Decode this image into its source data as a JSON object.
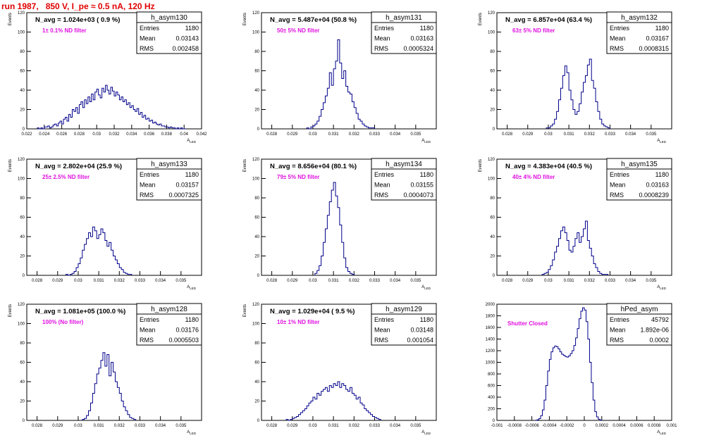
{
  "title": "run 1987,   850 V, I_pe ≈ 0.5 nA, 120 Hz",
  "chart_data": [
    {
      "type": "histogram",
      "hist_name": "h_asym130",
      "navg": "N_avg = 1.024e+03 ( 0.9 %)",
      "filter": "1± 0.1% ND filter",
      "stats": {
        "Entries": "1180",
        "Mean": "0.03143",
        "RMS": "0.002458"
      },
      "xlabel": "A_LED",
      "ylabel": "Events",
      "xlim": [
        0.022,
        0.042
      ],
      "ylim": [
        0,
        120
      ],
      "xticks": [
        "0.022",
        "0.024",
        "0.026",
        "0.028",
        "0.03",
        "0.032",
        "0.034",
        "0.036",
        "0.038",
        "0.04",
        "0.042"
      ],
      "yticks": [
        "0",
        "20",
        "40",
        "60",
        "80",
        "100",
        "120"
      ],
      "bins": {
        "x0": 0.0232,
        "width": 0.0002,
        "counts": [
          1,
          0,
          1,
          0,
          2,
          2,
          3,
          1,
          2,
          4,
          5,
          3,
          6,
          8,
          5,
          10,
          12,
          8,
          15,
          12,
          20,
          18,
          22,
          16,
          25,
          28,
          22,
          30,
          26,
          33,
          28,
          36,
          30,
          38,
          41,
          35,
          32,
          42,
          38,
          45,
          40,
          36,
          43,
          39,
          34,
          38,
          35,
          30,
          33,
          28,
          30,
          25,
          27,
          22,
          24,
          20,
          18,
          21,
          15,
          17,
          12,
          14,
          10,
          11,
          8,
          9,
          6,
          7,
          5,
          4,
          5,
          3,
          3,
          2,
          2,
          1,
          2,
          1,
          1,
          0,
          1,
          0,
          1,
          0,
          0
        ]
      }
    },
    {
      "type": "histogram",
      "hist_name": "h_asym131",
      "navg": "N_avg = 5.487e+04 (50.8 %)",
      "filter": "50± 5% ND filter",
      "stats": {
        "Entries": "1180",
        "Mean": "0.03163",
        "RMS": "0.0005324"
      },
      "xlabel": "A_LED",
      "ylabel": "Events",
      "xlim": [
        0.0275,
        0.036
      ],
      "ylim": [
        0,
        120
      ],
      "xticks": [
        "0.028",
        "0.029",
        "0.03",
        "0.031",
        "0.032",
        "0.033",
        "0.034",
        "0.035"
      ],
      "yticks": [
        "0",
        "20",
        "40",
        "60",
        "80",
        "100",
        "120"
      ],
      "bins": {
        "x0": 0.0297,
        "width": 0.0001,
        "counts": [
          1,
          0,
          2,
          3,
          5,
          8,
          13,
          20,
          27,
          34,
          42,
          58,
          45,
          62,
          70,
          92,
          68,
          52,
          60,
          44,
          38,
          36,
          28,
          22,
          16,
          10,
          8,
          5,
          3,
          2,
          1,
          1,
          1
        ]
      }
    },
    {
      "type": "histogram",
      "hist_name": "h_asym132",
      "navg": "N_avg = 6.857e+04 (63.4 %)",
      "filter": "63± 5% ND filter",
      "stats": {
        "Entries": "1180",
        "Mean": "0.03167",
        "RMS": "0.0008315"
      },
      "xlabel": "A_LED",
      "ylabel": "Events",
      "xlim": [
        0.0275,
        0.036
      ],
      "ylim": [
        0,
        120
      ],
      "xticks": [
        "0.028",
        "0.029",
        "0.03",
        "0.031",
        "0.032",
        "0.033",
        "0.034",
        "0.035"
      ],
      "yticks": [
        "0",
        "20",
        "40",
        "60",
        "80",
        "100",
        "120"
      ],
      "bins": {
        "x0": 0.0299,
        "width": 0.0001,
        "counts": [
          1,
          1,
          3,
          5,
          10,
          18,
          30,
          42,
          55,
          65,
          58,
          40,
          30,
          20,
          15,
          18,
          26,
          38,
          48,
          55,
          66,
          72,
          50,
          42,
          28,
          18,
          10,
          5,
          3,
          2,
          1
        ]
      }
    },
    {
      "type": "histogram",
      "hist_name": "h_asym133",
      "navg": "N_avg = 2.802e+04 (25.9 %)",
      "filter": "25± 2.5% ND filter",
      "stats": {
        "Entries": "1180",
        "Mean": "0.03157",
        "RMS": "0.0007325"
      },
      "xlabel": "A_LED",
      "ylabel": "Events",
      "xlim": [
        0.0275,
        0.036
      ],
      "ylim": [
        0,
        120
      ],
      "xticks": [
        "0.028",
        "0.029",
        "0.03",
        "0.031",
        "0.032",
        "0.033",
        "0.034",
        "0.035"
      ],
      "yticks": [
        "0",
        "20",
        "40",
        "60",
        "80",
        "100",
        "120"
      ],
      "bins": {
        "x0": 0.0294,
        "width": 0.0001,
        "counts": [
          1,
          0,
          1,
          2,
          4,
          8,
          12,
          18,
          26,
          32,
          38,
          44,
          40,
          50,
          46,
          38,
          42,
          48,
          44,
          36,
          30,
          34,
          26,
          20,
          16,
          12,
          8,
          6,
          3,
          2,
          1,
          1
        ]
      }
    },
    {
      "type": "histogram",
      "hist_name": "h_asym134",
      "navg": "N_avg = 8.656e+04 (80.1 %)",
      "filter": "79± 5% ND filter",
      "stats": {
        "Entries": "1180",
        "Mean": "0.03155",
        "RMS": "0.0004073"
      },
      "xlabel": "A_LED",
      "ylabel": "Events",
      "xlim": [
        0.0275,
        0.036
      ],
      "ylim": [
        0,
        120
      ],
      "xticks": [
        "0.028",
        "0.029",
        "0.03",
        "0.031",
        "0.032",
        "0.033",
        "0.034",
        "0.035"
      ],
      "yticks": [
        "0",
        "20",
        "40",
        "60",
        "80",
        "100",
        "120"
      ],
      "bins": {
        "x0": 0.0301,
        "width": 0.0001,
        "counts": [
          2,
          5,
          10,
          20,
          34,
          48,
          62,
          76,
          88,
          96,
          82,
          70,
          52,
          34,
          18,
          8,
          4,
          2,
          1
        ]
      }
    },
    {
      "type": "histogram",
      "hist_name": "h_asym135",
      "navg": "N_avg = 4.383e+04 (40.5 %)",
      "filter": "40± 4% ND filter",
      "stats": {
        "Entries": "1180",
        "Mean": "0.03163",
        "RMS": "0.0008239"
      },
      "xlabel": "A_LED",
      "ylabel": "Events",
      "xlim": [
        0.0275,
        0.036
      ],
      "ylim": [
        0,
        120
      ],
      "xticks": [
        "0.028",
        "0.029",
        "0.03",
        "0.031",
        "0.032",
        "0.033",
        "0.034",
        "0.035"
      ],
      "yticks": [
        "0",
        "20",
        "40",
        "60",
        "80",
        "100",
        "120"
      ],
      "bins": {
        "x0": 0.0297,
        "width": 0.0001,
        "counts": [
          1,
          2,
          3,
          6,
          10,
          16,
          24,
          30,
          38,
          46,
          50,
          44,
          36,
          26,
          24,
          30,
          38,
          44,
          34,
          40,
          48,
          56,
          36,
          28,
          20,
          12,
          8,
          4,
          2,
          1,
          1,
          1
        ]
      }
    },
    {
      "type": "histogram",
      "hist_name": "h_asym128",
      "navg": "N_avg = 1.081e+05 (100.0 %)",
      "filter": "100% (No filter)",
      "stats": {
        "Entries": "1180",
        "Mean": "0.03176",
        "RMS": "0.0005503"
      },
      "xlabel": "A_LED",
      "ylabel": "Events",
      "xlim": [
        0.0275,
        0.036
      ],
      "ylim": [
        0,
        120
      ],
      "xticks": [
        "0.028",
        "0.029",
        "0.03",
        "0.031",
        "0.032",
        "0.033",
        "0.034",
        "0.035"
      ],
      "yticks": [
        "0",
        "20",
        "40",
        "60",
        "80",
        "100",
        "120"
      ],
      "bins": {
        "x0": 0.0302,
        "width": 0.0001,
        "counts": [
          1,
          2,
          5,
          10,
          18,
          28,
          38,
          48,
          54,
          62,
          70,
          56,
          68,
          46,
          60,
          50,
          40,
          34,
          28,
          20,
          14,
          10,
          6,
          3,
          2,
          1
        ]
      }
    },
    {
      "type": "histogram",
      "hist_name": "h_asym129",
      "navg": "N_avg = 1.029e+04 ( 9.5 %)",
      "filter": "10± 1% ND filter",
      "stats": {
        "Entries": "1180",
        "Mean": "0.03148",
        "RMS": "0.001054"
      },
      "xlabel": "A_LED",
      "ylabel": "Events",
      "xlim": [
        0.0275,
        0.036
      ],
      "ylim": [
        0,
        120
      ],
      "xticks": [
        "0.028",
        "0.029",
        "0.03",
        "0.031",
        "0.032",
        "0.033",
        "0.034",
        "0.035"
      ],
      "yticks": [
        "0",
        "20",
        "40",
        "60",
        "80",
        "100",
        "120"
      ],
      "bins": {
        "x0": 0.0287,
        "width": 0.0001,
        "counts": [
          1,
          0,
          1,
          2,
          3,
          4,
          6,
          8,
          10,
          12,
          15,
          18,
          20,
          24,
          22,
          28,
          26,
          30,
          32,
          34,
          30,
          36,
          34,
          38,
          36,
          40,
          34,
          38,
          36,
          32,
          30,
          34,
          28,
          26,
          22,
          24,
          18,
          16,
          12,
          10,
          8,
          6,
          4,
          3,
          2,
          1
        ]
      }
    },
    {
      "type": "histogram",
      "hist_name": "hPed_asym",
      "navg": "",
      "filter": "Shutter Closed",
      "stats": {
        "Entries": "45792",
        "Mean": "1.892e-06",
        "RMS": "0.0002"
      },
      "xlabel": "A_LED",
      "ylabel": "",
      "xlim": [
        -0.001,
        0.001
      ],
      "ylim": [
        0,
        2000
      ],
      "xticks": [
        "-0.001",
        "-0.0008",
        "-0.0006",
        "-0.0004",
        "-0.0002",
        "0",
        "0.0002",
        "0.0004",
        "0.0006",
        "0.0008",
        "0.001"
      ],
      "yticks": [
        "0",
        "200",
        "400",
        "600",
        "800",
        "1000",
        "1200",
        "1400",
        "1600",
        "1800",
        "2000"
      ],
      "bins": {
        "x0": -0.00056,
        "width": 2e-05,
        "counts": [
          2,
          10,
          30,
          80,
          180,
          350,
          600,
          850,
          1050,
          1180,
          1250,
          1280,
          1270,
          1230,
          1180,
          1140,
          1120,
          1100,
          1090,
          1110,
          1150,
          1200,
          1290,
          1420,
          1580,
          1750,
          1880,
          1940,
          1900,
          1700,
          1400,
          1000,
          650,
          350,
          150,
          60,
          20,
          5
        ]
      }
    }
  ]
}
